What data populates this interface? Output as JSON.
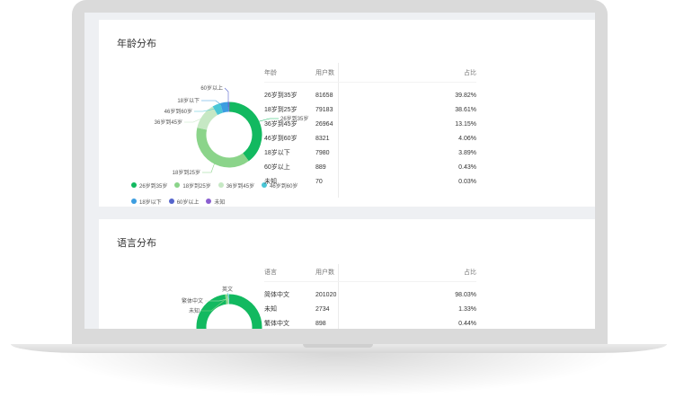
{
  "age_section": {
    "title": "年龄分布",
    "table_headers": [
      "年龄",
      "用户数",
      "占比"
    ],
    "rows": [
      {
        "label": "26岁到35岁",
        "users": "81658",
        "pct": "39.82%"
      },
      {
        "label": "18岁到25岁",
        "users": "79183",
        "pct": "38.61%"
      },
      {
        "label": "36岁到45岁",
        "users": "26964",
        "pct": "13.15%"
      },
      {
        "label": "46岁到60岁",
        "users": "8321",
        "pct": "4.06%"
      },
      {
        "label": "18岁以下",
        "users": "7980",
        "pct": "3.89%"
      },
      {
        "label": "60岁以上",
        "users": "889",
        "pct": "0.43%"
      },
      {
        "label": "未知",
        "users": "70",
        "pct": "0.03%"
      }
    ],
    "colors": [
      "#12b960",
      "#8bd48a",
      "#c6e8c4",
      "#4ac6d6",
      "#3c9de0",
      "#5565cc",
      "#8b5fd0"
    ]
  },
  "language_section": {
    "title": "语言分布",
    "table_headers": [
      "语言",
      "用户数",
      "占比"
    ],
    "rows": [
      {
        "label": "简体中文",
        "users": "201020",
        "pct": "98.03%"
      },
      {
        "label": "未知",
        "users": "2734",
        "pct": "1.33%"
      },
      {
        "label": "繁体中文",
        "users": "898",
        "pct": "0.44%"
      }
    ],
    "extra_chart_label": "英文",
    "colors": [
      "#12b960",
      "#8bd48a",
      "#c6e8c4",
      "#4ac6d6"
    ]
  },
  "chart_data": [
    {
      "type": "pie",
      "title": "年龄分布",
      "categories": [
        "26岁到35岁",
        "18岁到25岁",
        "36岁到45岁",
        "46岁到60岁",
        "18岁以下",
        "60岁以上",
        "未知"
      ],
      "values": [
        39.82,
        38.61,
        13.15,
        4.06,
        3.89,
        0.43,
        0.03
      ],
      "legend": "bottom"
    },
    {
      "type": "pie",
      "title": "语言分布",
      "categories": [
        "简体中文",
        "未知",
        "繁体中文",
        "英文"
      ],
      "values": [
        98.03,
        1.33,
        0.44,
        0.2
      ]
    }
  ]
}
